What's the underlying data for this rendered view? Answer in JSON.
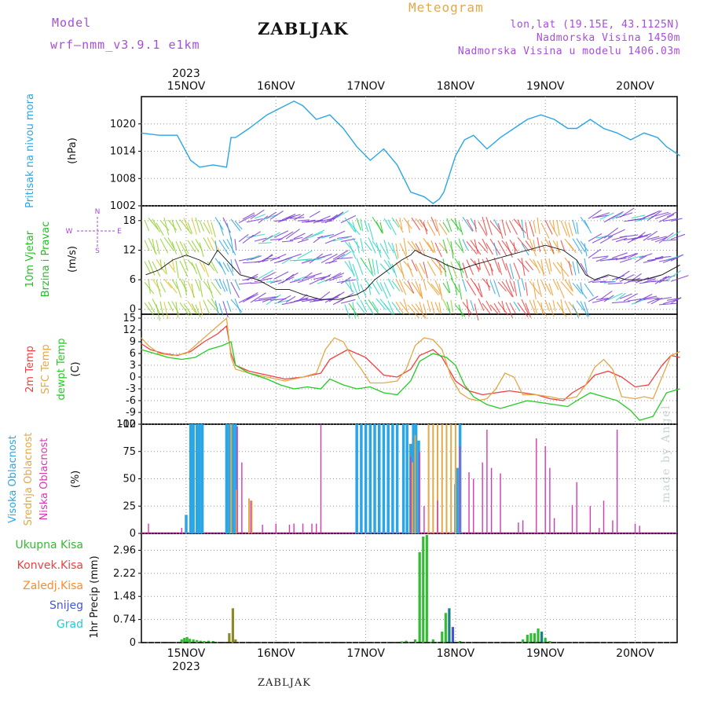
{
  "header": {
    "model_label": "Model",
    "model_name": "wrf—nmm_v3.9.1  e1km",
    "title": "ZABLJAK",
    "meteogram_label": "Meteogram",
    "lonlat": "lon,lat (19.15E, 43.1125N)",
    "altitude": "Nadmorska Visina 1450m",
    "model_altitude": "Nadmorska Visina u modelu 1406.03m"
  },
  "footer": {
    "station": "ZABLJAK",
    "made_by": "made by Angel"
  },
  "colors": {
    "pressure": "#2aa6e6",
    "wind_label": "#1fc11f",
    "temp2m": "#f04040",
    "sfc": "#e3a848",
    "dewpt": "#22cc22",
    "high_cloud": "#2aa6e6",
    "mid_cloud": "#e3a848",
    "low_cloud": "#d63ab0",
    "precip_total": "#33bb33",
    "precip_conv": "#f04040",
    "precip_frz": "#ff8c2a",
    "snow": "#4455dd",
    "grad": "#22cccc",
    "purple": "#a64ddd"
  },
  "chart_data": [
    {
      "type": "line",
      "panel": "pressure",
      "ylabel_main": "Pritisak na nivou mora",
      "ylabel_unit": "(hPa)",
      "yticks": [
        "1020",
        "1014",
        "1008",
        "1002"
      ],
      "ylim": [
        1002,
        1026
      ],
      "x_day_labels": [
        "15NOV",
        "16NOV",
        "17NOV",
        "18NOV",
        "19NOV",
        "20NOV"
      ],
      "year_label": "2023",
      "x_days": [
        -0.5,
        -0.3,
        -0.1,
        0.05,
        0.15,
        0.3,
        0.45,
        0.5,
        0.55,
        0.7,
        0.9,
        1.05,
        1.2,
        1.3,
        1.45,
        1.6,
        1.75,
        1.9,
        2.05,
        2.2,
        2.35,
        2.5,
        2.65,
        2.75,
        2.82,
        2.87,
        3.0,
        3.1,
        3.2,
        3.35,
        3.5,
        3.65,
        3.8,
        3.95,
        4.1,
        4.25,
        4.35,
        4.5,
        4.65,
        4.8,
        4.95,
        5.1,
        5.25,
        5.35,
        5.5
      ],
      "values": [
        1018,
        1017.5,
        1017.5,
        1012,
        1010.5,
        1011,
        1010.5,
        1017,
        1017,
        1019,
        1022,
        1023.5,
        1025,
        1024,
        1021,
        1022,
        1019,
        1015,
        1012,
        1014.5,
        1011,
        1005,
        1004,
        1002.5,
        1003.5,
        1005,
        1013,
        1016.5,
        1017.5,
        1014.5,
        1017,
        1019,
        1021,
        1022,
        1021,
        1019,
        1019,
        1021,
        1019,
        1018,
        1016.5,
        1018,
        1017,
        1015,
        1013
      ]
    },
    {
      "type": "line",
      "panel": "wind",
      "ylabel_main": "10m Vjetar",
      "ylabel_sub": "Brzina i Pravac",
      "ylabel_unit": "(m/s)",
      "compass": {
        "n": "N",
        "s": "S",
        "e": "E",
        "w": "W"
      },
      "yticks": [
        "18",
        "12",
        "6",
        "0"
      ],
      "ylim": [
        -1,
        21
      ],
      "series": [
        {
          "x_days": [
            -0.45,
            -0.3,
            -0.15,
            0.0,
            0.15,
            0.25,
            0.35,
            0.5,
            0.6,
            0.8,
            1.0,
            1.15,
            1.3,
            1.5,
            1.7,
            1.9,
            2.0,
            2.1,
            2.25,
            2.4,
            2.5,
            2.55,
            2.65,
            2.8,
            2.9,
            3.05,
            3.2,
            3.4,
            3.6,
            3.8,
            4.0,
            4.2,
            4.35,
            4.45,
            4.55,
            4.7,
            4.9,
            5.1,
            5.3,
            5.5
          ],
          "values": [
            7,
            8,
            10,
            11,
            10,
            9,
            12,
            9,
            7,
            6,
            4,
            4,
            3,
            2,
            2,
            3,
            4,
            6,
            8,
            10,
            11,
            12,
            11,
            10,
            9,
            8,
            9,
            10,
            11,
            12,
            13,
            12,
            10,
            7,
            6,
            7,
            6,
            6,
            7,
            9
          ]
        }
      ]
    },
    {
      "type": "line",
      "panel": "temperature",
      "labels": {
        "temp2m": "2m Temp",
        "sfc": "SFC Temp",
        "dewpt": "dewpt Temp",
        "unit": "(C)"
      },
      "yticks": [
        "15",
        "12",
        "9",
        "6",
        "3",
        "0",
        "-3",
        "-6",
        "-9",
        "-12"
      ],
      "ylim": [
        -12,
        16
      ],
      "series": [
        {
          "key": "temp2m",
          "x_days": [
            -0.5,
            -0.4,
            -0.25,
            -0.1,
            0.05,
            0.2,
            0.35,
            0.45,
            0.5,
            0.55,
            0.7,
            0.9,
            1.1,
            1.3,
            1.5,
            1.6,
            1.8,
            2.0,
            2.2,
            2.35,
            2.5,
            2.6,
            2.75,
            2.85,
            3.0,
            3.15,
            3.3,
            3.45,
            3.6,
            3.75,
            3.9,
            4.05,
            4.2,
            4.3,
            4.45,
            4.55,
            4.7,
            4.85,
            5.0,
            5.15,
            5.3,
            5.4,
            5.5
          ],
          "values": [
            8.5,
            7,
            6,
            5.5,
            6.5,
            9,
            11,
            13,
            6,
            3,
            1.5,
            0.5,
            -0.5,
            0,
            1,
            4.5,
            7,
            5,
            0.5,
            0,
            2,
            5.5,
            7,
            5,
            -1,
            -3.5,
            -4.5,
            -4,
            -3.5,
            -4,
            -4.5,
            -5.5,
            -6,
            -4,
            -2,
            0.5,
            1.5,
            0,
            -2.5,
            -2,
            3,
            5.5,
            5
          ]
        },
        {
          "key": "sfc",
          "x_days": [
            -0.5,
            -0.42,
            -0.3,
            -0.15,
            0.0,
            0.15,
            0.3,
            0.45,
            0.5,
            0.55,
            0.7,
            0.9,
            1.1,
            1.3,
            1.45,
            1.55,
            1.65,
            1.75,
            1.85,
            1.95,
            2.05,
            2.2,
            2.35,
            2.45,
            2.55,
            2.65,
            2.75,
            2.85,
            2.95,
            3.05,
            3.15,
            3.25,
            3.35,
            3.45,
            3.55,
            3.65,
            3.75,
            3.9,
            4.05,
            4.15,
            4.25,
            4.35,
            4.45,
            4.55,
            4.65,
            4.75,
            4.85,
            5.0,
            5.1,
            5.2,
            5.3,
            5.4,
            5.5
          ],
          "values": [
            10,
            8,
            6,
            5.5,
            6,
            9,
            12,
            15,
            5,
            2,
            1,
            0,
            -1,
            0,
            1,
            7,
            10,
            9,
            5,
            2,
            -1.5,
            -1.5,
            -1,
            2,
            8,
            10,
            9.5,
            7,
            0,
            -4,
            -5.5,
            -6,
            -5.5,
            -3,
            1,
            0,
            -4.5,
            -4.5,
            -5,
            -5.5,
            -5.5,
            -5,
            -2,
            2.5,
            4.5,
            2,
            -5,
            -5.5,
            -5,
            -5.5,
            0,
            5.5,
            6.5
          ]
        },
        {
          "key": "dewpt",
          "x_days": [
            -0.5,
            -0.35,
            -0.2,
            -0.05,
            0.1,
            0.25,
            0.4,
            0.5,
            0.55,
            0.7,
            0.9,
            1.05,
            1.2,
            1.35,
            1.5,
            1.6,
            1.75,
            1.9,
            2.05,
            2.2,
            2.35,
            2.5,
            2.6,
            2.75,
            2.9,
            3.0,
            3.1,
            3.2,
            3.35,
            3.5,
            3.65,
            3.8,
            3.95,
            4.1,
            4.25,
            4.35,
            4.5,
            4.65,
            4.8,
            4.95,
            5.05,
            5.2,
            5.35,
            5.5
          ],
          "values": [
            7,
            6,
            5,
            4.5,
            5,
            7,
            8,
            9,
            3,
            1,
            -0.5,
            -2,
            -3,
            -2.5,
            -3,
            -0.5,
            -2,
            -3,
            -2.5,
            -4,
            -4.5,
            -1,
            4,
            6,
            5,
            3,
            -2,
            -5,
            -7,
            -8,
            -7,
            -6,
            -6.5,
            -7,
            -7.5,
            -6,
            -4,
            -5,
            -6,
            -8.5,
            -11,
            -10,
            -4,
            -3
          ]
        }
      ]
    },
    {
      "type": "bar",
      "panel": "clouds",
      "labels": {
        "high": "Visoka Oblacnost",
        "mid": "Srednja Oblacnost",
        "low": "Niska Oblacnost",
        "unit": "(%)"
      },
      "yticks": [
        "100",
        "75",
        "50",
        "25",
        "0"
      ],
      "ylim": [
        0,
        100
      ],
      "series": [
        {
          "name": "Visoka Oblacnost",
          "x_days": [
            0.0,
            0.05,
            0.08,
            0.12,
            0.15,
            0.18,
            0.45,
            0.48,
            0.52,
            0.55,
            1.9,
            1.95,
            2.0,
            2.05,
            2.1,
            2.15,
            2.2,
            2.25,
            2.3,
            2.35,
            2.42,
            2.46,
            2.5,
            2.53,
            2.56,
            2.59,
            3.0,
            3.02,
            3.05
          ],
          "values": [
            17,
            100,
            100,
            100,
            100,
            100,
            100,
            100,
            100,
            100,
            100,
            100,
            100,
            100,
            100,
            100,
            100,
            100,
            100,
            100,
            100,
            100,
            82,
            100,
            100,
            85,
            45,
            60,
            100
          ]
        },
        {
          "name": "Srednja Oblacnost",
          "x_days": [
            0.5,
            0.56,
            0.7,
            0.73,
            2.52,
            2.55,
            2.7,
            2.75,
            2.8,
            2.85,
            2.9,
            2.95,
            3.0
          ],
          "values": [
            100,
            40,
            32,
            30,
            65,
            90,
            100,
            100,
            100,
            100,
            100,
            100,
            100
          ]
        },
        {
          "name": "Niska Oblacnost",
          "x_days": [
            -0.42,
            -0.05,
            0.57,
            0.62,
            0.72,
            0.85,
            1.0,
            1.15,
            1.2,
            1.3,
            1.4,
            1.45,
            1.5,
            2.5,
            2.6,
            2.65,
            2.8,
            3.05,
            3.15,
            3.2,
            3.3,
            3.35,
            3.4,
            3.5,
            3.7,
            3.75,
            3.9,
            4.0,
            4.05,
            4.1,
            4.3,
            4.35,
            4.5,
            4.6,
            4.65,
            4.75,
            4.8,
            5.0,
            5.05
          ],
          "values": [
            9,
            5,
            98,
            65,
            30,
            8,
            9,
            8,
            9,
            9,
            9,
            9,
            100,
            70,
            75,
            25,
            30,
            80,
            56,
            50,
            65,
            95,
            60,
            55,
            10,
            12,
            87,
            80,
            60,
            14,
            26,
            47,
            25,
            5,
            30,
            12,
            95,
            9,
            7
          ]
        }
      ]
    },
    {
      "type": "bar",
      "panel": "precipitation",
      "labels": {
        "total": "Ukupna Kisa",
        "conv": "Konvek.Kisa",
        "frz": "Zaledj.Kisa",
        "snow": "Snijeg",
        "grad": "Grad",
        "unit": "1hr Precip (mm)"
      },
      "yticks": [
        "2.96",
        "2.22",
        "1.48",
        "0.74",
        "0"
      ],
      "ylim": [
        0,
        3.5
      ],
      "bars": [
        {
          "x": -0.05,
          "v": 0.1,
          "k": "total"
        },
        {
          "x": -0.02,
          "v": 0.15,
          "k": "total"
        },
        {
          "x": 0.01,
          "v": 0.18,
          "k": "total"
        },
        {
          "x": 0.04,
          "v": 0.12,
          "k": "total"
        },
        {
          "x": 0.08,
          "v": 0.1,
          "k": "total"
        },
        {
          "x": 0.12,
          "v": 0.08,
          "k": "total"
        },
        {
          "x": 0.16,
          "v": 0.06,
          "k": "total"
        },
        {
          "x": 0.2,
          "v": 0.05,
          "k": "total"
        },
        {
          "x": 0.25,
          "v": 0.06,
          "k": "total"
        },
        {
          "x": 0.3,
          "v": 0.05,
          "k": "total"
        },
        {
          "x": 0.48,
          "v": 0.3,
          "k": "olive"
        },
        {
          "x": 0.52,
          "v": 1.1,
          "k": "olive"
        },
        {
          "x": 0.55,
          "v": 0.1,
          "k": "olive"
        },
        {
          "x": 2.4,
          "v": 0.04,
          "k": "total"
        },
        {
          "x": 2.45,
          "v": 0.06,
          "k": "total"
        },
        {
          "x": 2.55,
          "v": 0.1,
          "k": "total"
        },
        {
          "x": 2.6,
          "v": 2.9,
          "k": "total"
        },
        {
          "x": 2.64,
          "v": 3.4,
          "k": "total"
        },
        {
          "x": 2.68,
          "v": 3.45,
          "k": "total"
        },
        {
          "x": 2.75,
          "v": 0.1,
          "k": "total"
        },
        {
          "x": 2.85,
          "v": 0.35,
          "k": "total"
        },
        {
          "x": 2.89,
          "v": 0.95,
          "k": "total"
        },
        {
          "x": 2.93,
          "v": 1.1,
          "k": "teal"
        },
        {
          "x": 2.97,
          "v": 0.5,
          "k": "snow"
        },
        {
          "x": 3.05,
          "v": 0.05,
          "k": "total"
        },
        {
          "x": 3.75,
          "v": 0.1,
          "k": "total"
        },
        {
          "x": 3.8,
          "v": 0.25,
          "k": "total"
        },
        {
          "x": 3.84,
          "v": 0.3,
          "k": "total"
        },
        {
          "x": 3.88,
          "v": 0.3,
          "k": "total"
        },
        {
          "x": 3.92,
          "v": 0.45,
          "k": "total"
        },
        {
          "x": 3.96,
          "v": 0.35,
          "k": "teal"
        },
        {
          "x": 4.0,
          "v": 0.15,
          "k": "total"
        },
        {
          "x": 4.05,
          "v": 0.05,
          "k": "total"
        }
      ]
    }
  ]
}
